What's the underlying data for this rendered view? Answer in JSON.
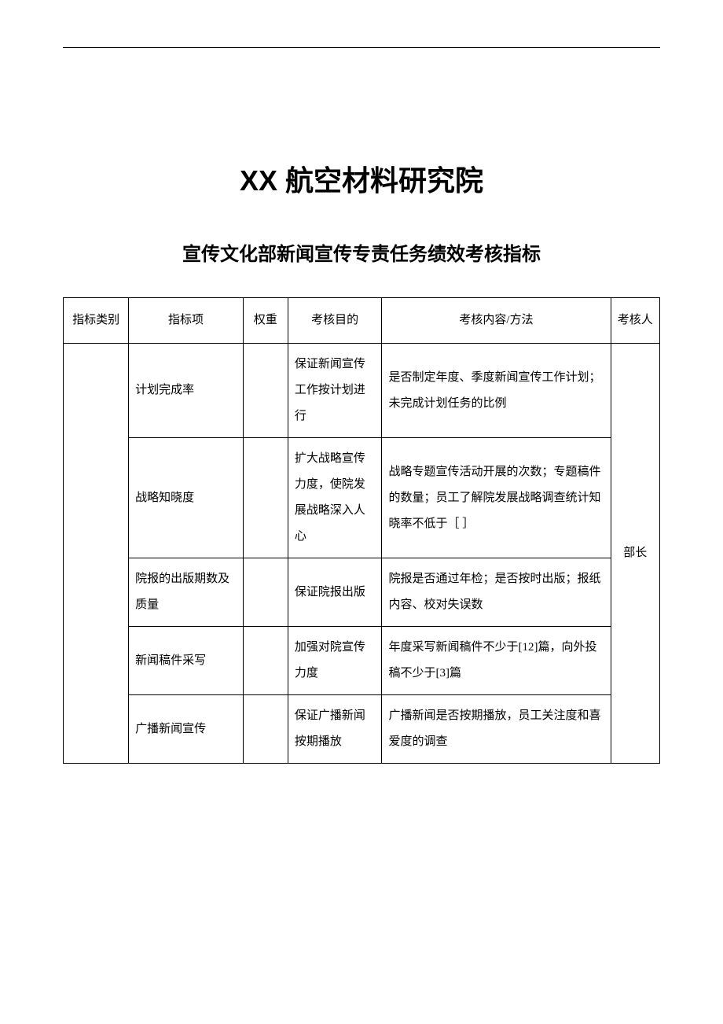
{
  "main_title": "XX 航空材料研究院",
  "sub_title": "宣传文化部新闻宣传专责任务绩效考核指标",
  "table": {
    "headers": {
      "category": "指标类别",
      "indicator": "指标项",
      "weight": "权重",
      "purpose": "考核目的",
      "method": "考核内容/方法",
      "assessor": "考核人"
    },
    "rows": [
      {
        "indicator": "计划完成率",
        "weight": "",
        "purpose": "保证新闻宣传工作按计划进行",
        "method": "是否制定年度、季度新闻宣传工作计划；未完成计划任务的比例"
      },
      {
        "indicator": "战略知晓度",
        "weight": "",
        "purpose": "扩大战略宣传力度，使院发展战略深入人心",
        "method": "战略专题宣传活动开展的次数；专题稿件的数量；员工了解院发展战略调查统计知晓率不低于［ ］"
      },
      {
        "indicator": "院报的出版期数及质量",
        "weight": "",
        "purpose": "保证院报出版",
        "method": "院报是否通过年检；是否按时出版；报纸内容、校对失误数"
      },
      {
        "indicator": "新闻稿件采写",
        "weight": "",
        "purpose": "加强对院宣传力度",
        "method": "年度采写新闻稿件不少于[12]篇，向外投稿不少于[3]篇"
      },
      {
        "indicator": "广播新闻宣传",
        "weight": "",
        "purpose": "保证广播新闻按期播放",
        "method": "广播新闻是否按期播放，员工关注度和喜爱度的调查"
      }
    ],
    "assessor": "部长"
  },
  "styling": {
    "background_color": "#ffffff",
    "text_color": "#000000",
    "border_color": "#000000",
    "main_title_fontsize": 36,
    "sub_title_fontsize": 24,
    "table_fontsize": 15,
    "font_family_title": "SimHei",
    "font_family_body": "SimSun"
  }
}
